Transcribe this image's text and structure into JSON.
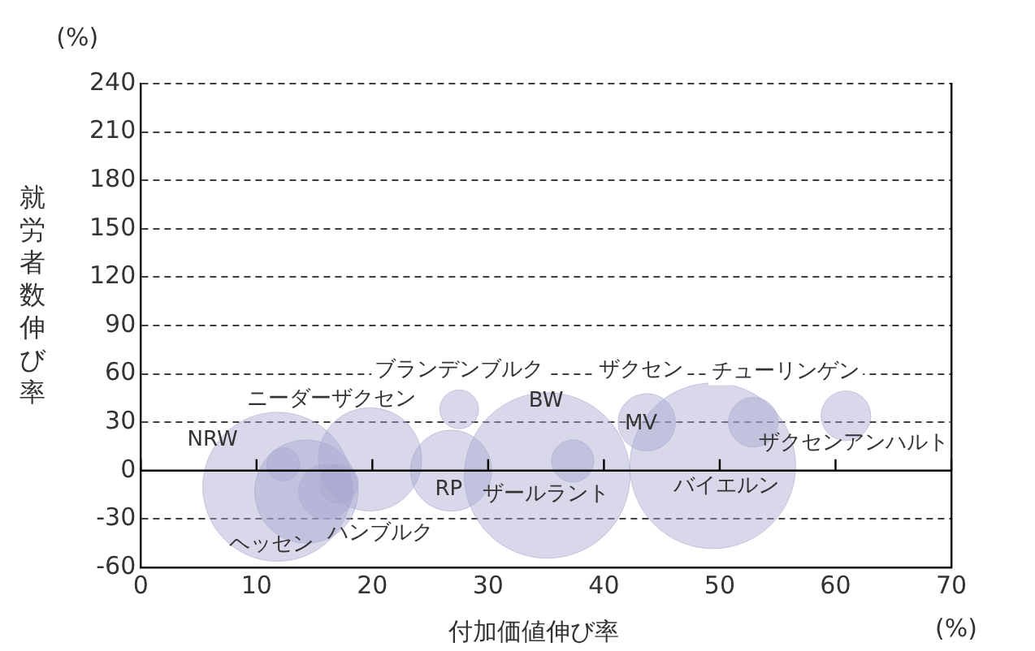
{
  "chart_data": {
    "type": "bubble",
    "xlabel": "付加価値伸び率",
    "ylabel": "就労者数伸び率",
    "x": [
      11.8,
      12.3,
      14.3,
      16,
      17.1,
      19.8,
      27.5,
      26.8,
      35.1,
      37.3,
      43.7,
      49.4,
      52.9,
      60.9
    ],
    "values": [
      -10,
      4,
      -13,
      -13,
      -8,
      7,
      38,
      0,
      -3,
      6,
      30,
      3,
      30,
      34
    ],
    "sizes": [
      0.81,
      0.04,
      0.39,
      0.11,
      0.055,
      0.39,
      0.055,
      0.24,
      1,
      0.065,
      0.12,
      1,
      0.09,
      0.09
    ],
    "color": "#a8a8d0",
    "xlim": [
      0,
      70
    ],
    "xticks": [
      0,
      10,
      20,
      30,
      40,
      50,
      60,
      70
    ],
    "ylim": [
      -60,
      240
    ],
    "yticks": [
      -60,
      -30,
      0,
      30,
      60,
      90,
      120,
      150,
      180,
      210,
      240
    ],
    "grid": "y",
    "ref_lines": [
      {
        "axis": "y",
        "value": 0
      }
    ],
    "annotations": [
      "(%)",
      "(%)",
      "NRW",
      "ニーダーザクセン",
      "ブランデンブルク",
      "ザクセン",
      "チューリンゲン",
      "BW",
      "MV",
      "RP",
      "ザールラント",
      "バイエルン",
      "ザクセンアンハルト",
      "ヘッセン",
      "ハンブルク"
    ]
  }
}
